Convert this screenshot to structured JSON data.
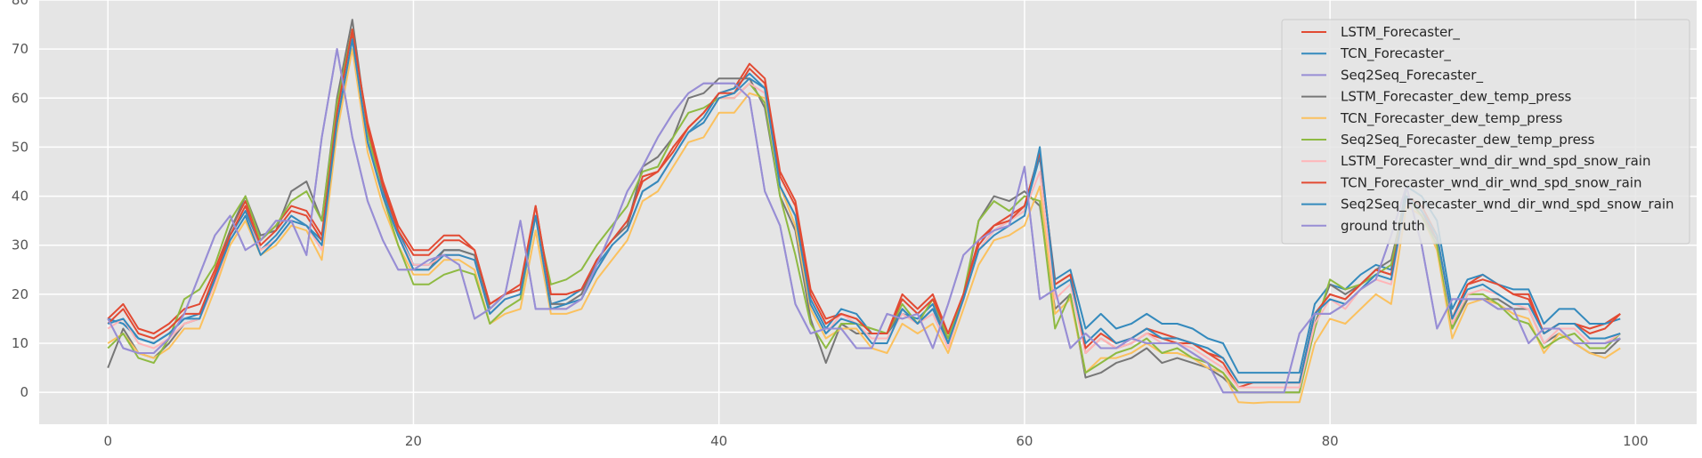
{
  "chart_data": {
    "type": "line",
    "title": "",
    "xlabel": "",
    "ylabel": "",
    "xlim": [
      -4.5,
      104
    ],
    "ylim": [
      -6.5,
      80
    ],
    "xticks": [
      0,
      20,
      40,
      60,
      80,
      100
    ],
    "yticks": [
      0,
      10,
      20,
      30,
      40,
      50,
      60,
      70,
      80
    ],
    "grid": true,
    "legend_position": "top-right",
    "x": [
      0,
      1,
      2,
      3,
      4,
      5,
      6,
      7,
      8,
      9,
      10,
      11,
      12,
      13,
      14,
      15,
      16,
      17,
      18,
      19,
      20,
      21,
      22,
      23,
      24,
      25,
      26,
      27,
      28,
      29,
      30,
      31,
      32,
      33,
      34,
      35,
      36,
      37,
      38,
      39,
      40,
      41,
      42,
      43,
      44,
      45,
      46,
      47,
      48,
      49,
      50,
      51,
      52,
      53,
      54,
      55,
      56,
      57,
      58,
      59,
      60,
      61,
      62,
      63,
      64,
      65,
      66,
      67,
      68,
      69,
      70,
      71,
      72,
      73,
      74,
      75,
      76,
      77,
      78,
      79,
      80,
      81,
      82,
      83,
      84,
      85,
      86,
      87,
      88,
      89,
      90,
      91,
      92,
      93,
      94,
      95,
      96,
      97,
      98,
      99
    ],
    "series": [
      {
        "name": "LSTM_Forecaster_",
        "color": "#e24a33",
        "values": [
          15,
          18,
          13,
          12,
          14,
          17,
          18,
          25,
          33,
          39,
          31,
          34,
          38,
          37,
          32,
          57,
          73,
          55,
          43,
          34,
          29,
          29,
          32,
          32,
          29,
          18,
          20,
          22,
          38,
          20,
          20,
          21,
          27,
          31,
          34,
          44,
          45,
          50,
          54,
          57,
          61,
          62,
          67,
          64,
          45,
          39,
          21,
          15,
          16,
          15,
          12,
          12,
          20,
          17,
          20,
          12,
          20,
          30,
          34,
          36,
          38,
          49,
          22,
          24,
          8,
          11,
          9,
          10,
          12,
          11,
          10,
          10,
          8,
          6,
          1,
          2,
          2,
          2,
          2,
          16,
          20,
          19,
          22,
          25,
          24,
          40,
          37,
          31,
          15,
          22,
          24,
          22,
          20,
          20,
          12,
          14,
          14,
          13,
          14,
          16
        ]
      },
      {
        "name": "TCN_Forecaster_",
        "color": "#348abd",
        "values": [
          15,
          14,
          11,
          10,
          12,
          15,
          16,
          23,
          32,
          37,
          29,
          32,
          36,
          34,
          31,
          55,
          72,
          51,
          41,
          33,
          26,
          26,
          29,
          29,
          28,
          17,
          20,
          21,
          36,
          18,
          19,
          21,
          26,
          30,
          33,
          41,
          43,
          48,
          53,
          56,
          61,
          62,
          65,
          62,
          42,
          36,
          19,
          13,
          17,
          16,
          12,
          12,
          16,
          15,
          18,
          10,
          19,
          29,
          33,
          35,
          37,
          48,
          23,
          25,
          13,
          16,
          13,
          14,
          16,
          14,
          14,
          13,
          11,
          10,
          4,
          4,
          4,
          4,
          4,
          18,
          22,
          21,
          24,
          26,
          25,
          42,
          40,
          35,
          17,
          23,
          24,
          22,
          21,
          21,
          14,
          17,
          17,
          14,
          14,
          15
        ]
      },
      {
        "name": "Seq2Seq_Forecaster_",
        "color": "#988ed5",
        "values": [
          15,
          9,
          8,
          8,
          11,
          16,
          24,
          32,
          36,
          29,
          31,
          35,
          35,
          28,
          52,
          70,
          52,
          39,
          31,
          25,
          25,
          27,
          28,
          26,
          15,
          17,
          20,
          35,
          17,
          17,
          17,
          19,
          26,
          33,
          41,
          46,
          52,
          57,
          61,
          63,
          63,
          63,
          60,
          41,
          34,
          18,
          12,
          13,
          13,
          9,
          9,
          16,
          15,
          16,
          9,
          18,
          28,
          31,
          33,
          34,
          46,
          19,
          21,
          9,
          12,
          9,
          9,
          11,
          10,
          10,
          10,
          8,
          6,
          0,
          0,
          0,
          0,
          0,
          12,
          16,
          16,
          18,
          21,
          23,
          32,
          42,
          30,
          13,
          19,
          19,
          19,
          17,
          17,
          10,
          13,
          13,
          10,
          10,
          10,
          11
        ]
      },
      {
        "name": "LSTM_Forecaster_dew_temp_press",
        "color": "#777777",
        "values": [
          5,
          13,
          8,
          7,
          10,
          14,
          15,
          23,
          33,
          40,
          32,
          33,
          41,
          43,
          35,
          60,
          76,
          53,
          40,
          32,
          25,
          25,
          29,
          29,
          28,
          17,
          20,
          21,
          36,
          18,
          18,
          20,
          27,
          31,
          34,
          46,
          48,
          52,
          60,
          61,
          64,
          64,
          64,
          58,
          40,
          33,
          15,
          6,
          14,
          12,
          12,
          12,
          17,
          14,
          17,
          11,
          19,
          35,
          40,
          39,
          41,
          38,
          17,
          20,
          3,
          4,
          6,
          7,
          9,
          6,
          7,
          6,
          5,
          3,
          0,
          0,
          0,
          0,
          0,
          14,
          22,
          20,
          22,
          25,
          27,
          40,
          36,
          31,
          13,
          19,
          19,
          19,
          17,
          17,
          10,
          12,
          10,
          8,
          8,
          11
        ]
      },
      {
        "name": "TCN_Forecaster_dew_temp_press",
        "color": "#fbc15e",
        "values": [
          10,
          12,
          8,
          7,
          9,
          13,
          13,
          21,
          30,
          35,
          28,
          30,
          34,
          33,
          27,
          53,
          70,
          49,
          38,
          30,
          24,
          24,
          27,
          27,
          25,
          14,
          16,
          17,
          33,
          16,
          16,
          17,
          23,
          27,
          31,
          39,
          41,
          46,
          51,
          52,
          57,
          57,
          61,
          60,
          42,
          34,
          17,
          11,
          13,
          13,
          9,
          8,
          14,
          12,
          14,
          8,
          17,
          26,
          31,
          32,
          34,
          42,
          16,
          19,
          4,
          7,
          7,
          8,
          10,
          8,
          8,
          7,
          5,
          4,
          -2,
          -2.2,
          -2,
          -2,
          -2,
          10,
          15,
          14,
          17,
          20,
          18,
          38,
          36,
          29,
          11,
          18,
          19,
          18,
          16,
          15,
          8,
          12,
          10,
          8,
          7,
          9
        ]
      },
      {
        "name": "Seq2Seq_Forecaster_dew_temp_press",
        "color": "#8eba42",
        "values": [
          9,
          12,
          7,
          6,
          11,
          19,
          21,
          26,
          35,
          40,
          31,
          34,
          39,
          41,
          35,
          59,
          74,
          53,
          40,
          30,
          22,
          22,
          24,
          25,
          24,
          14,
          17,
          19,
          36,
          22,
          23,
          25,
          30,
          34,
          38,
          45,
          46,
          52,
          57,
          58,
          60,
          60,
          63,
          59,
          40,
          28,
          14,
          9,
          14,
          14,
          13,
          12,
          18,
          14,
          19,
          11,
          20,
          35,
          39,
          37,
          40,
          39,
          13,
          20,
          4,
          6,
          8,
          9,
          11,
          8,
          9,
          7,
          6,
          4,
          0,
          0,
          0,
          0,
          0,
          13,
          23,
          21,
          22,
          24,
          26,
          40,
          36,
          30,
          13,
          20,
          20,
          18,
          15,
          14,
          9,
          11,
          12,
          9,
          9,
          12
        ]
      },
      {
        "name": "LSTM_Forecaster_wnd_dir_wnd_spd_snow_rain",
        "color": "#ffb5b8",
        "values": [
          13,
          15,
          10,
          9,
          11,
          14,
          15,
          22,
          31,
          36,
          29,
          31,
          35,
          34,
          29,
          56,
          72,
          51,
          40,
          32,
          26,
          26,
          28,
          28,
          27,
          16,
          19,
          20,
          36,
          17,
          17,
          19,
          25,
          30,
          33,
          41,
          43,
          48,
          53,
          55,
          60,
          60,
          63,
          61,
          42,
          36,
          18,
          12,
          16,
          14,
          11,
          11,
          16,
          14,
          16,
          9,
          19,
          29,
          33,
          35,
          37,
          45,
          19,
          22,
          8,
          11,
          9,
          10,
          12,
          10,
          10,
          9,
          7,
          5,
          1,
          1,
          1,
          1,
          1,
          14,
          19,
          17,
          21,
          23,
          22,
          40,
          38,
          32,
          14,
          20,
          21,
          20,
          18,
          17,
          10,
          13,
          13,
          10,
          10,
          12
        ]
      },
      {
        "name": "TCN_Forecaster_wnd_dir_wnd_spd_snow_rain",
        "color": "#e24a33",
        "values": [
          14,
          17,
          12,
          11,
          13,
          16,
          16,
          24,
          32,
          38,
          30,
          33,
          37,
          36,
          31,
          57,
          74,
          54,
          42,
          33,
          28,
          28,
          31,
          31,
          29,
          18,
          20,
          21,
          38,
          20,
          20,
          21,
          27,
          31,
          35,
          43,
          45,
          49,
          54,
          57,
          61,
          61,
          66,
          63,
          44,
          38,
          20,
          14,
          16,
          15,
          12,
          12,
          19,
          16,
          19,
          12,
          20,
          31,
          34,
          35,
          38,
          49,
          22,
          24,
          9,
          12,
          10,
          11,
          13,
          12,
          11,
          10,
          8,
          7,
          2,
          2,
          2,
          2,
          2,
          16,
          20,
          19,
          22,
          25,
          24,
          40,
          38,
          32,
          15,
          22,
          23,
          22,
          20,
          19,
          12,
          14,
          14,
          12,
          13,
          16
        ]
      },
      {
        "name": "Seq2Seq_Forecaster_wnd_dir_wnd_spd_snow_rain",
        "color": "#348abd",
        "values": [
          14,
          15,
          11,
          10,
          12,
          15,
          15,
          23,
          31,
          36,
          28,
          31,
          35,
          34,
          30,
          55,
          72,
          51,
          40,
          32,
          25,
          25,
          28,
          28,
          27,
          16,
          19,
          20,
          36,
          17,
          18,
          19,
          25,
          30,
          33,
          41,
          43,
          48,
          53,
          55,
          60,
          61,
          64,
          62,
          42,
          36,
          18,
          12,
          15,
          14,
          10,
          10,
          17,
          14,
          17,
          10,
          19,
          29,
          32,
          34,
          36,
          50,
          21,
          23,
          10,
          13,
          10,
          11,
          13,
          11,
          11,
          10,
          9,
          7,
          2,
          2,
          2,
          2,
          2,
          16,
          19,
          18,
          21,
          24,
          23,
          40,
          37,
          32,
          15,
          21,
          22,
          20,
          18,
          18,
          12,
          14,
          14,
          11,
          11,
          12
        ]
      },
      {
        "name": "ground truth",
        "color": "#988ed5",
        "values": [
          15,
          9,
          8,
          8,
          11,
          16,
          24,
          32,
          36,
          29,
          31,
          35,
          35,
          28,
          52,
          70,
          52,
          39,
          31,
          25,
          25,
          27,
          28,
          26,
          15,
          17,
          20,
          35,
          17,
          17,
          17,
          19,
          26,
          33,
          41,
          46,
          52,
          57,
          61,
          63,
          63,
          63,
          60,
          41,
          34,
          18,
          12,
          13,
          13,
          9,
          9,
          16,
          15,
          16,
          9,
          18,
          28,
          31,
          33,
          34,
          46,
          19,
          21,
          9,
          12,
          9,
          9,
          11,
          10,
          10,
          10,
          8,
          6,
          0,
          0,
          0,
          0,
          0,
          12,
          16,
          16,
          18,
          21,
          23,
          32,
          42,
          30,
          13,
          19,
          19,
          19,
          17,
          17,
          10,
          13,
          13,
          10,
          10,
          10,
          11
        ]
      }
    ]
  }
}
